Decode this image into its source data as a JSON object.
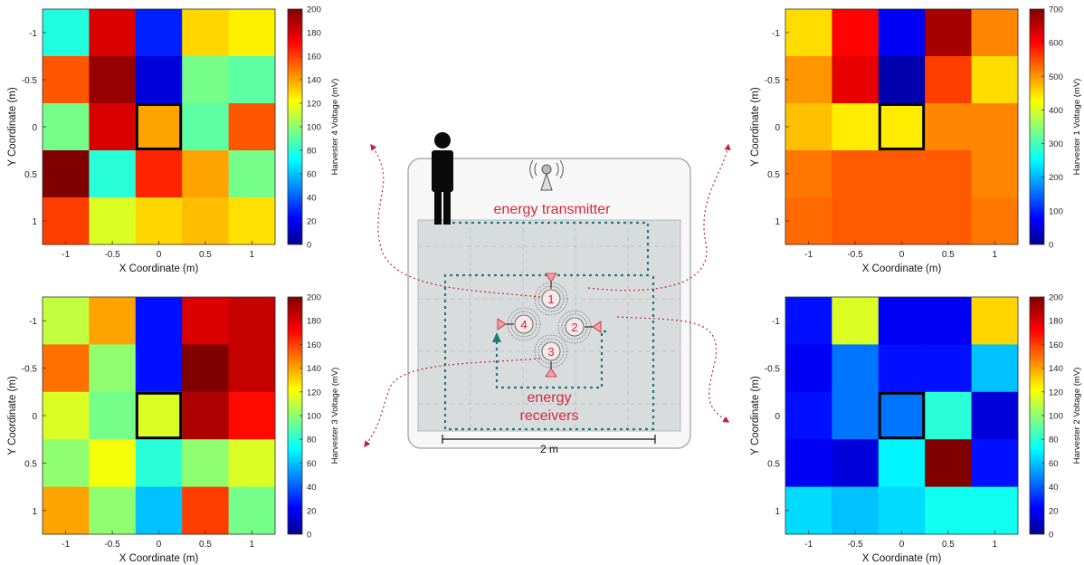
{
  "chart_data": [
    {
      "type": "heatmap",
      "panel": "top-left",
      "x": [
        -1,
        -0.5,
        0,
        0.5,
        1
      ],
      "y": [
        -1,
        -0.5,
        0,
        0.5,
        1
      ],
      "xticks": [
        "-1",
        "-0.5",
        "0",
        "0.5",
        "1"
      ],
      "yticks": [
        "-1",
        "-0.5",
        "0",
        "0.5",
        "1"
      ],
      "xlabel": "X Coordinate (m)",
      "ylabel": "Y Coordinate (m)",
      "colorbar_label": "Harvester 4 Voltage (mV)",
      "clim": [
        0,
        200
      ],
      "colorbar_ticks": [
        "0",
        "20",
        "40",
        "60",
        "80",
        "100",
        "120",
        "140",
        "160",
        "180",
        "200"
      ],
      "values": [
        [
          78,
          180,
          28,
          130,
          125
        ],
        [
          155,
          195,
          15,
          95,
          90
        ],
        [
          95,
          180,
          140,
          90,
          155
        ],
        [
          200,
          80,
          165,
          140,
          95
        ],
        [
          160,
          115,
          130,
          135,
          128
        ]
      ],
      "highlight": {
        "x": 0,
        "y": 0
      }
    },
    {
      "type": "heatmap",
      "panel": "bottom-left",
      "x": [
        -1,
        -0.5,
        0,
        0.5,
        1
      ],
      "y": [
        -1,
        -0.5,
        0,
        0.5,
        1
      ],
      "xticks": [
        "-1",
        "-0.5",
        "0",
        "0.5",
        "1"
      ],
      "yticks": [
        "-1",
        "-0.5",
        "0",
        "0.5",
        "1"
      ],
      "xlabel": "X Coordinate (m)",
      "ylabel": "Y Coordinate (m)",
      "colorbar_label": "Harvester 3 Voltage (mV)",
      "clim": [
        0,
        200
      ],
      "colorbar_ticks": [
        "0",
        "20",
        "40",
        "60",
        "80",
        "100",
        "120",
        "140",
        "160",
        "180",
        "200"
      ],
      "values": [
        [
          110,
          140,
          25,
          180,
          185
        ],
        [
          150,
          100,
          25,
          200,
          185
        ],
        [
          115,
          95,
          115,
          190,
          170
        ],
        [
          100,
          120,
          80,
          100,
          115
        ],
        [
          140,
          100,
          60,
          160,
          95
        ]
      ],
      "highlight": {
        "x": 0,
        "y": 0
      }
    },
    {
      "type": "heatmap",
      "panel": "top-right",
      "x": [
        -1,
        -0.5,
        0,
        0.5,
        1
      ],
      "y": [
        -1,
        -0.5,
        0,
        0.5,
        1
      ],
      "xticks": [
        "-1",
        "-0.5",
        "0",
        "0.5",
        "1"
      ],
      "yticks": [
        "-1",
        "-0.5",
        "0",
        "0.5",
        "1"
      ],
      "xlabel": "X Coordinate (m)",
      "ylabel": "Y Coordinate (m)",
      "colorbar_label": "Harvester 1 Voltage (mV)",
      "clim": [
        0,
        700
      ],
      "colorbar_ticks": [
        "0",
        "100",
        "200",
        "300",
        "400",
        "500",
        "600",
        "700"
      ],
      "values": [
        [
          450,
          600,
          70,
          670,
          510
        ],
        [
          500,
          620,
          20,
          560,
          450
        ],
        [
          470,
          440,
          440,
          510,
          510
        ],
        [
          520,
          540,
          540,
          540,
          510
        ],
        [
          530,
          540,
          540,
          540,
          520
        ]
      ],
      "highlight": {
        "x": 0,
        "y": 0
      }
    },
    {
      "type": "heatmap",
      "panel": "bottom-right",
      "x": [
        -1,
        -0.5,
        0,
        0.5,
        1
      ],
      "y": [
        -1,
        -0.5,
        0,
        0.5,
        1
      ],
      "xticks": [
        "-1",
        "-0.5",
        "0",
        "0.5",
        "1"
      ],
      "yticks": [
        "-1",
        "-0.5",
        "0",
        "0.5",
        "1"
      ],
      "xlabel": "X Coordinate (m)",
      "ylabel": "Y Coordinate (m)",
      "colorbar_label": "Harvester 2 Voltage (mV)",
      "clim": [
        0,
        200
      ],
      "colorbar_ticks": [
        "0",
        "20",
        "40",
        "60",
        "80",
        "100",
        "120",
        "140",
        "160",
        "180",
        "200"
      ],
      "values": [
        [
          25,
          115,
          20,
          20,
          130
        ],
        [
          20,
          45,
          25,
          25,
          60
        ],
        [
          25,
          45,
          45,
          80,
          15
        ],
        [
          20,
          15,
          70,
          200,
          25
        ],
        [
          65,
          60,
          65,
          75,
          75
        ]
      ],
      "highlight": {
        "x": 0,
        "y": 0
      }
    }
  ],
  "diagram": {
    "labels": {
      "transmitter": "energy transmitter",
      "receivers_line1": "energy",
      "receivers_line2": "receivers",
      "scale": "2 m"
    },
    "receiver_numbers": [
      "1",
      "2",
      "3",
      "4"
    ],
    "colors": {
      "label": "#d7283c",
      "path": "#1f7a7c",
      "signal": "#d7283c",
      "marker": "#f4a0a8"
    },
    "icons": [
      "person-icon",
      "antenna-icon"
    ]
  }
}
